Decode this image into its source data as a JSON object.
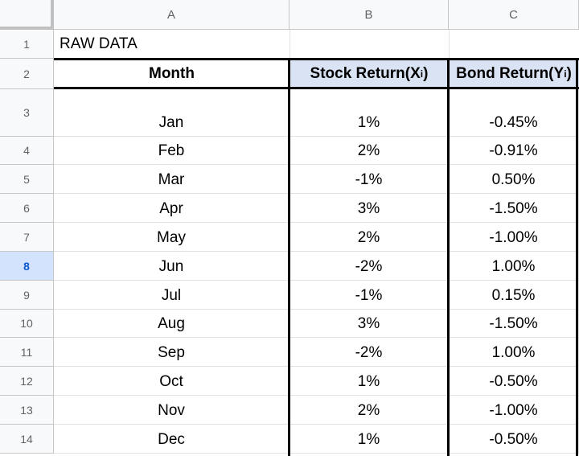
{
  "columns": [
    "A",
    "B",
    "C"
  ],
  "row_numbers": [
    "1",
    "2",
    "3",
    "4",
    "5",
    "6",
    "7",
    "8",
    "9",
    "10",
    "11",
    "12",
    "13",
    "14"
  ],
  "selected_row": "8",
  "title_cell": "RAW DATA",
  "headers": {
    "month": "Month",
    "stock_prefix": "Stock Return(X",
    "stock_sub": "i",
    "stock_suffix": " )",
    "bond_prefix": "Bond Return(Y",
    "bond_sub": "i",
    "bond_suffix": ")"
  },
  "rows": [
    {
      "month": "Jan",
      "stock": "1%",
      "bond": "-0.45%"
    },
    {
      "month": "Feb",
      "stock": "2%",
      "bond": "-0.91%"
    },
    {
      "month": "Mar",
      "stock": "-1%",
      "bond": "0.50%"
    },
    {
      "month": "Apr",
      "stock": "3%",
      "bond": "-1.50%"
    },
    {
      "month": "May",
      "stock": "2%",
      "bond": "-1.00%"
    },
    {
      "month": "Jun",
      "stock": "-2%",
      "bond": "1.00%"
    },
    {
      "month": "Jul",
      "stock": "-1%",
      "bond": "0.15%"
    },
    {
      "month": "Aug",
      "stock": "3%",
      "bond": "-1.50%"
    },
    {
      "month": "Sep",
      "stock": "-2%",
      "bond": "1.00%"
    },
    {
      "month": "Oct",
      "stock": "1%",
      "bond": "-0.50%"
    },
    {
      "month": "Nov",
      "stock": "2%",
      "bond": "-1.00%"
    },
    {
      "month": "Dec",
      "stock": "1%",
      "bond": "-0.50%"
    }
  ],
  "colors": {
    "header_fill": "#dae3f3",
    "selected_row_header": "#d3e3fd",
    "grid": "#e2e2e2"
  }
}
